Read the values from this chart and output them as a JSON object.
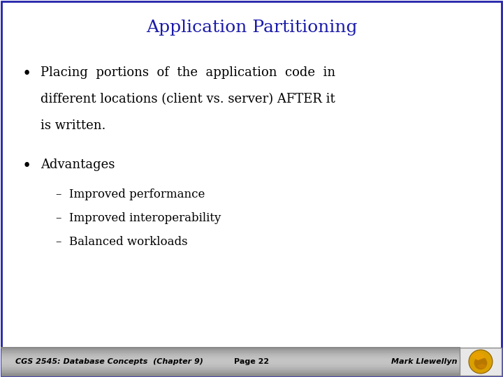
{
  "title": "Application Partitioning",
  "title_color": "#1a1aaa",
  "title_fontsize": 18,
  "background_color": "#FFFFFF",
  "border_color": "#2222AA",
  "bullet1_lines": [
    "Placing  portions  of  the  application  code  in",
    "different locations (client vs. server) AFTER it",
    "is written."
  ],
  "bullet2_text": "Advantages",
  "sub_bullets": [
    "–  Improved performance",
    "–  Improved interoperability",
    "–  Balanced workloads"
  ],
  "footer_left": "CGS 2545: Database Concepts  (Chapter 9)",
  "footer_center": "Page 22",
  "footer_right": "Mark Llewellyn",
  "footer_text_color": "#000000",
  "body_text_color": "#000000",
  "body_fontsize": 13,
  "sub_fontsize": 12
}
